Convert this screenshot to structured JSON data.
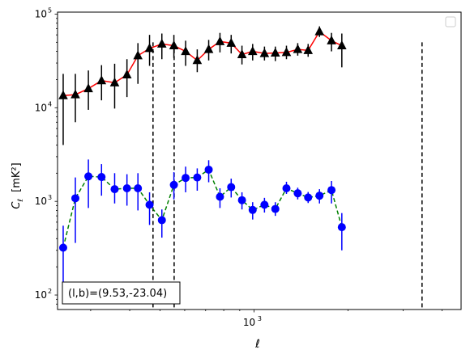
{
  "chart_data": {
    "type": "scatter",
    "xlabel": "ℓ",
    "ylabel_main": "C",
    "ylabel_sub": "ℓ",
    "ylabel_unit": "[mK²]",
    "xscale": "log",
    "yscale": "log",
    "xlim": [
      235,
      4600
    ],
    "ylim": [
      70,
      105000
    ],
    "x_ticks": [
      {
        "value": 1000,
        "base": "10",
        "exp": "3"
      }
    ],
    "y_ticks": [
      {
        "value": 100,
        "base": "10",
        "exp": "2"
      },
      {
        "value": 1000,
        "base": "10",
        "exp": "3"
      },
      {
        "value": 10000,
        "base": "10",
        "exp": "4"
      },
      {
        "value": 100000,
        "base": "10",
        "exp": "5"
      }
    ],
    "annotation": "(l,b)=(9.53,-23.04)",
    "legend_position": "upper right",
    "legend_entries": [],
    "vlines": [
      {
        "x": 475,
        "y_top": 50000
      },
      {
        "x": 555,
        "y_top": 50000
      },
      {
        "x": 3450,
        "y_top": 50000
      }
    ],
    "series": [
      {
        "marker": "triangle",
        "marker_color": "#000000",
        "line_color": "#ff0000",
        "line_style": "solid",
        "points": [
          {
            "x": 245,
            "y": 13500,
            "lo": 4000,
            "hi": 23000
          },
          {
            "x": 268,
            "y": 13800,
            "lo": 7000,
            "hi": 23000
          },
          {
            "x": 295,
            "y": 16000,
            "lo": 9500,
            "hi": 25000
          },
          {
            "x": 325,
            "y": 19500,
            "lo": 12000,
            "hi": 28500
          },
          {
            "x": 358,
            "y": 18500,
            "lo": 9800,
            "hi": 29500
          },
          {
            "x": 392,
            "y": 22500,
            "lo": 13000,
            "hi": 33000
          },
          {
            "x": 425,
            "y": 36000,
            "lo": 18000,
            "hi": 49000
          },
          {
            "x": 463,
            "y": 43000,
            "lo": 28000,
            "hi": 60000
          },
          {
            "x": 507,
            "y": 48000,
            "lo": 33000,
            "hi": 62000
          },
          {
            "x": 554,
            "y": 46000,
            "lo": 34000,
            "hi": 60000
          },
          {
            "x": 604,
            "y": 40000,
            "lo": 28000,
            "hi": 52000
          },
          {
            "x": 658,
            "y": 32000,
            "lo": 24000,
            "hi": 42000
          },
          {
            "x": 716,
            "y": 42000,
            "lo": 32000,
            "hi": 53000
          },
          {
            "x": 778,
            "y": 51000,
            "lo": 39000,
            "hi": 63000
          },
          {
            "x": 845,
            "y": 49000,
            "lo": 38000,
            "hi": 60000
          },
          {
            "x": 915,
            "y": 37000,
            "lo": 29000,
            "hi": 46000
          },
          {
            "x": 990,
            "y": 40000,
            "lo": 32000,
            "hi": 48000
          },
          {
            "x": 1080,
            "y": 38000,
            "lo": 32000,
            "hi": 45000
          },
          {
            "x": 1170,
            "y": 38500,
            "lo": 31500,
            "hi": 45000
          },
          {
            "x": 1270,
            "y": 39000,
            "lo": 33000,
            "hi": 46000
          },
          {
            "x": 1380,
            "y": 42000,
            "lo": 36000,
            "hi": 49000
          },
          {
            "x": 1490,
            "y": 41000,
            "lo": 35000,
            "hi": 48000
          },
          {
            "x": 1620,
            "y": 65000,
            "lo": 57000,
            "hi": 74000
          },
          {
            "x": 1770,
            "y": 52000,
            "lo": 40000,
            "hi": 63000
          },
          {
            "x": 1910,
            "y": 46000,
            "lo": 27000,
            "hi": 62000
          }
        ]
      },
      {
        "marker": "circle",
        "marker_color": "#0000ff",
        "line_color": "#008000",
        "line_style": "dashed",
        "points": [
          {
            "x": 245,
            "y": 320,
            "lo": 130,
            "hi": 550
          },
          {
            "x": 268,
            "y": 1080,
            "lo": 360,
            "hi": 1800
          },
          {
            "x": 295,
            "y": 1850,
            "lo": 850,
            "hi": 2800
          },
          {
            "x": 325,
            "y": 1820,
            "lo": 1150,
            "hi": 2500
          },
          {
            "x": 358,
            "y": 1350,
            "lo": 950,
            "hi": 2000
          },
          {
            "x": 392,
            "y": 1380,
            "lo": 900,
            "hi": 1950
          },
          {
            "x": 425,
            "y": 1380,
            "lo": 800,
            "hi": 2000
          },
          {
            "x": 463,
            "y": 920,
            "lo": 560,
            "hi": 1250
          },
          {
            "x": 507,
            "y": 630,
            "lo": 410,
            "hi": 820
          },
          {
            "x": 554,
            "y": 1500,
            "lo": 1050,
            "hi": 2050
          },
          {
            "x": 604,
            "y": 1780,
            "lo": 1250,
            "hi": 2350
          },
          {
            "x": 658,
            "y": 1800,
            "lo": 1300,
            "hi": 2250
          },
          {
            "x": 716,
            "y": 2180,
            "lo": 1600,
            "hi": 2750
          },
          {
            "x": 778,
            "y": 1120,
            "lo": 850,
            "hi": 1380
          },
          {
            "x": 845,
            "y": 1420,
            "lo": 1100,
            "hi": 1750
          },
          {
            "x": 915,
            "y": 1030,
            "lo": 820,
            "hi": 1250
          },
          {
            "x": 990,
            "y": 810,
            "lo": 640,
            "hi": 980
          },
          {
            "x": 1080,
            "y": 920,
            "lo": 760,
            "hi": 1090
          },
          {
            "x": 1170,
            "y": 830,
            "lo": 700,
            "hi": 980
          },
          {
            "x": 1270,
            "y": 1380,
            "lo": 1200,
            "hi": 1620
          },
          {
            "x": 1380,
            "y": 1220,
            "lo": 1050,
            "hi": 1400
          },
          {
            "x": 1490,
            "y": 1100,
            "lo": 960,
            "hi": 1260
          },
          {
            "x": 1620,
            "y": 1150,
            "lo": 950,
            "hi": 1350
          },
          {
            "x": 1770,
            "y": 1320,
            "lo": 950,
            "hi": 1650
          },
          {
            "x": 1910,
            "y": 530,
            "lo": 300,
            "hi": 750
          }
        ]
      }
    ]
  }
}
